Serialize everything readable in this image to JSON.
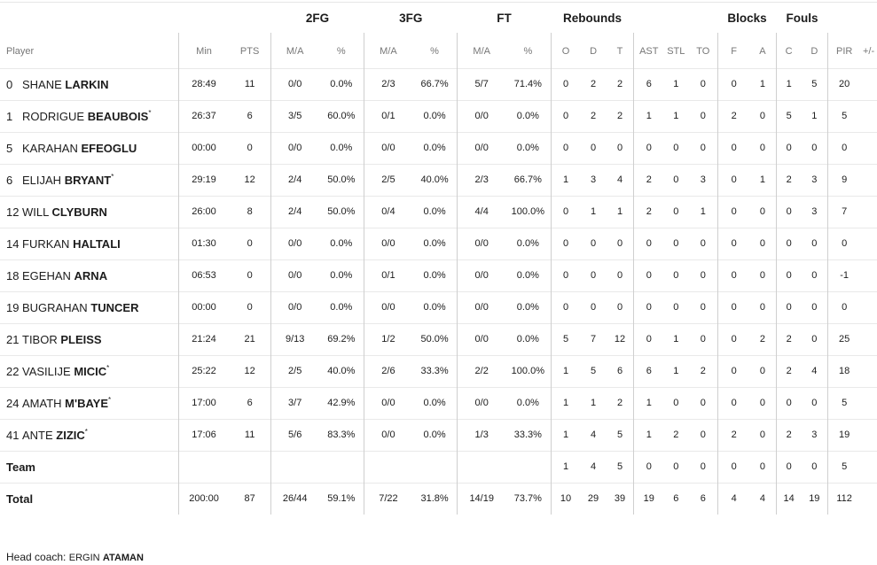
{
  "groups": {
    "fg2": "2FG",
    "fg3": "3FG",
    "ft": "FT",
    "rebounds": "Rebounds",
    "blocks": "Blocks",
    "fouls": "Fouls"
  },
  "columns": {
    "player": "Player",
    "min": "Min",
    "pts": "PTS",
    "fg2_ma": "M/A",
    "fg2_pct": "%",
    "fg3_ma": "M/A",
    "fg3_pct": "%",
    "ft_ma": "M/A",
    "ft_pct": "%",
    "reb_o": "O",
    "reb_d": "D",
    "reb_t": "T",
    "ast": "AST",
    "stl": "STL",
    "to": "TO",
    "blk_f": "F",
    "blk_a": "A",
    "foul_c": "C",
    "foul_d": "D",
    "pir": "PIR",
    "plusminus": "+/-"
  },
  "players": [
    {
      "num": "0",
      "first": "SHANE",
      "last": "LARKIN",
      "starter": false,
      "min": "28:49",
      "pts": "11",
      "fg2_ma": "0/0",
      "fg2_pct": "0.0%",
      "fg3_ma": "2/3",
      "fg3_pct": "66.7%",
      "ft_ma": "5/7",
      "ft_pct": "71.4%",
      "reb_o": "0",
      "reb_d": "2",
      "reb_t": "2",
      "ast": "6",
      "stl": "1",
      "to": "0",
      "blk_f": "0",
      "blk_a": "1",
      "foul_c": "1",
      "foul_d": "5",
      "pir": "20",
      "plusminus": ""
    },
    {
      "num": "1",
      "first": "RODRIGUE",
      "last": "BEAUBOIS",
      "starter": true,
      "min": "26:37",
      "pts": "6",
      "fg2_ma": "3/5",
      "fg2_pct": "60.0%",
      "fg3_ma": "0/1",
      "fg3_pct": "0.0%",
      "ft_ma": "0/0",
      "ft_pct": "0.0%",
      "reb_o": "0",
      "reb_d": "2",
      "reb_t": "2",
      "ast": "1",
      "stl": "1",
      "to": "0",
      "blk_f": "2",
      "blk_a": "0",
      "foul_c": "5",
      "foul_d": "1",
      "pir": "5",
      "plusminus": ""
    },
    {
      "num": "5",
      "first": "KARAHAN",
      "last": "EFEOGLU",
      "starter": false,
      "min": "00:00",
      "pts": "0",
      "fg2_ma": "0/0",
      "fg2_pct": "0.0%",
      "fg3_ma": "0/0",
      "fg3_pct": "0.0%",
      "ft_ma": "0/0",
      "ft_pct": "0.0%",
      "reb_o": "0",
      "reb_d": "0",
      "reb_t": "0",
      "ast": "0",
      "stl": "0",
      "to": "0",
      "blk_f": "0",
      "blk_a": "0",
      "foul_c": "0",
      "foul_d": "0",
      "pir": "0",
      "plusminus": ""
    },
    {
      "num": "6",
      "first": "ELIJAH",
      "last": "BRYANT",
      "starter": true,
      "min": "29:19",
      "pts": "12",
      "fg2_ma": "2/4",
      "fg2_pct": "50.0%",
      "fg3_ma": "2/5",
      "fg3_pct": "40.0%",
      "ft_ma": "2/3",
      "ft_pct": "66.7%",
      "reb_o": "1",
      "reb_d": "3",
      "reb_t": "4",
      "ast": "2",
      "stl": "0",
      "to": "3",
      "blk_f": "0",
      "blk_a": "1",
      "foul_c": "2",
      "foul_d": "3",
      "pir": "9",
      "plusminus": ""
    },
    {
      "num": "12",
      "first": "WILL",
      "last": "CLYBURN",
      "starter": false,
      "min": "26:00",
      "pts": "8",
      "fg2_ma": "2/4",
      "fg2_pct": "50.0%",
      "fg3_ma": "0/4",
      "fg3_pct": "0.0%",
      "ft_ma": "4/4",
      "ft_pct": "100.0%",
      "reb_o": "0",
      "reb_d": "1",
      "reb_t": "1",
      "ast": "2",
      "stl": "0",
      "to": "1",
      "blk_f": "0",
      "blk_a": "0",
      "foul_c": "0",
      "foul_d": "3",
      "pir": "7",
      "plusminus": ""
    },
    {
      "num": "14",
      "first": "FURKAN",
      "last": "HALTALI",
      "starter": false,
      "min": "01:30",
      "pts": "0",
      "fg2_ma": "0/0",
      "fg2_pct": "0.0%",
      "fg3_ma": "0/0",
      "fg3_pct": "0.0%",
      "ft_ma": "0/0",
      "ft_pct": "0.0%",
      "reb_o": "0",
      "reb_d": "0",
      "reb_t": "0",
      "ast": "0",
      "stl": "0",
      "to": "0",
      "blk_f": "0",
      "blk_a": "0",
      "foul_c": "0",
      "foul_d": "0",
      "pir": "0",
      "plusminus": ""
    },
    {
      "num": "18",
      "first": "EGEHAN",
      "last": "ARNA",
      "starter": false,
      "min": "06:53",
      "pts": "0",
      "fg2_ma": "0/0",
      "fg2_pct": "0.0%",
      "fg3_ma": "0/1",
      "fg3_pct": "0.0%",
      "ft_ma": "0/0",
      "ft_pct": "0.0%",
      "reb_o": "0",
      "reb_d": "0",
      "reb_t": "0",
      "ast": "0",
      "stl": "0",
      "to": "0",
      "blk_f": "0",
      "blk_a": "0",
      "foul_c": "0",
      "foul_d": "0",
      "pir": "-1",
      "plusminus": ""
    },
    {
      "num": "19",
      "first": "BUGRAHAN",
      "last": "TUNCER",
      "starter": false,
      "min": "00:00",
      "pts": "0",
      "fg2_ma": "0/0",
      "fg2_pct": "0.0%",
      "fg3_ma": "0/0",
      "fg3_pct": "0.0%",
      "ft_ma": "0/0",
      "ft_pct": "0.0%",
      "reb_o": "0",
      "reb_d": "0",
      "reb_t": "0",
      "ast": "0",
      "stl": "0",
      "to": "0",
      "blk_f": "0",
      "blk_a": "0",
      "foul_c": "0",
      "foul_d": "0",
      "pir": "0",
      "plusminus": ""
    },
    {
      "num": "21",
      "first": "TIBOR",
      "last": "PLEISS",
      "starter": false,
      "min": "21:24",
      "pts": "21",
      "fg2_ma": "9/13",
      "fg2_pct": "69.2%",
      "fg3_ma": "1/2",
      "fg3_pct": "50.0%",
      "ft_ma": "0/0",
      "ft_pct": "0.0%",
      "reb_o": "5",
      "reb_d": "7",
      "reb_t": "12",
      "ast": "0",
      "stl": "1",
      "to": "0",
      "blk_f": "0",
      "blk_a": "2",
      "foul_c": "2",
      "foul_d": "0",
      "pir": "25",
      "plusminus": ""
    },
    {
      "num": "22",
      "first": "VASILIJE",
      "last": "MICIC",
      "starter": true,
      "min": "25:22",
      "pts": "12",
      "fg2_ma": "2/5",
      "fg2_pct": "40.0%",
      "fg3_ma": "2/6",
      "fg3_pct": "33.3%",
      "ft_ma": "2/2",
      "ft_pct": "100.0%",
      "reb_o": "1",
      "reb_d": "5",
      "reb_t": "6",
      "ast": "6",
      "stl": "1",
      "to": "2",
      "blk_f": "0",
      "blk_a": "0",
      "foul_c": "2",
      "foul_d": "4",
      "pir": "18",
      "plusminus": ""
    },
    {
      "num": "24",
      "first": "AMATH",
      "last": "M'BAYE",
      "starter": true,
      "min": "17:00",
      "pts": "6",
      "fg2_ma": "3/7",
      "fg2_pct": "42.9%",
      "fg3_ma": "0/0",
      "fg3_pct": "0.0%",
      "ft_ma": "0/0",
      "ft_pct": "0.0%",
      "reb_o": "1",
      "reb_d": "1",
      "reb_t": "2",
      "ast": "1",
      "stl": "0",
      "to": "0",
      "blk_f": "0",
      "blk_a": "0",
      "foul_c": "0",
      "foul_d": "0",
      "pir": "5",
      "plusminus": ""
    },
    {
      "num": "41",
      "first": "ANTE",
      "last": "ZIZIC",
      "starter": true,
      "min": "17:06",
      "pts": "11",
      "fg2_ma": "5/6",
      "fg2_pct": "83.3%",
      "fg3_ma": "0/0",
      "fg3_pct": "0.0%",
      "ft_ma": "1/3",
      "ft_pct": "33.3%",
      "reb_o": "1",
      "reb_d": "4",
      "reb_t": "5",
      "ast": "1",
      "stl": "2",
      "to": "0",
      "blk_f": "2",
      "blk_a": "0",
      "foul_c": "2",
      "foul_d": "3",
      "pir": "19",
      "plusminus": ""
    }
  ],
  "starter_mark": "*",
  "team_row": {
    "label": "Team",
    "min": "",
    "pts": "",
    "fg2_ma": "",
    "fg2_pct": "",
    "fg3_ma": "",
    "fg3_pct": "",
    "ft_ma": "",
    "ft_pct": "",
    "reb_o": "1",
    "reb_d": "4",
    "reb_t": "5",
    "ast": "0",
    "stl": "0",
    "to": "0",
    "blk_f": "0",
    "blk_a": "0",
    "foul_c": "0",
    "foul_d": "0",
    "pir": "5",
    "plusminus": ""
  },
  "total_row": {
    "label": "Total",
    "min": "200:00",
    "pts": "87",
    "fg2_ma": "26/44",
    "fg2_pct": "59.1%",
    "fg3_ma": "7/22",
    "fg3_pct": "31.8%",
    "ft_ma": "14/19",
    "ft_pct": "73.7%",
    "reb_o": "10",
    "reb_d": "29",
    "reb_t": "39",
    "ast": "19",
    "stl": "6",
    "to": "6",
    "blk_f": "4",
    "blk_a": "4",
    "foul_c": "14",
    "foul_d": "19",
    "pir": "112",
    "plusminus": ""
  },
  "coach": {
    "label": "Head coach:",
    "first": "ERGIN",
    "last": "ATAMAN"
  }
}
